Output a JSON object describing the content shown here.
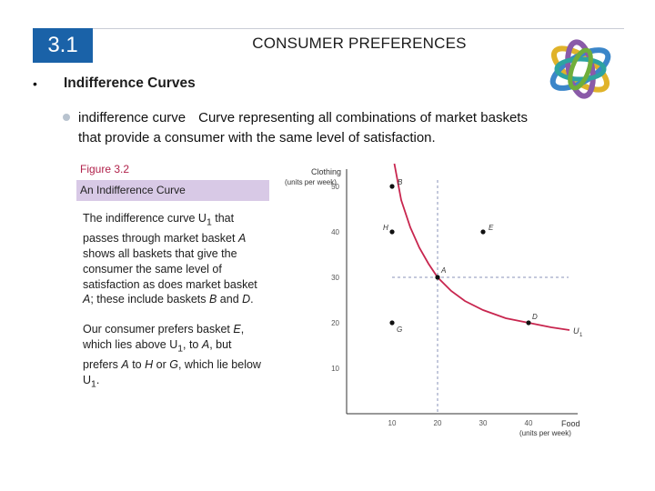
{
  "slide": {
    "number": "3.1",
    "title": "CONSUMER PREFERENCES",
    "bullet": "•",
    "heading": "Indifference Curves",
    "definition_term": "indifference curve",
    "definition_text": "Curve representing all combinations of market baskets that provide a consumer with the same level of satisfaction.",
    "logo_icon": "interlocking-rings-logo"
  },
  "figure": {
    "label": "Figure 3.2",
    "title": "An Indifference Curve",
    "caption_p1_a": "The indifference curve U",
    "caption_p1_sub": "1",
    "caption_p1_b": " that passes through market basket ",
    "caption_p1_c": "A",
    "caption_p1_d": " shows all baskets that give the consumer the same level of satisfaction as does market basket ",
    "caption_p1_e": "A",
    "caption_p1_f": "; these include baskets ",
    "caption_p1_g": "B",
    "caption_p1_h": " and ",
    "caption_p1_i": "D",
    "caption_p1_j": ".",
    "caption_p2_a": "Our consumer prefers basket ",
    "caption_p2_b": "E",
    "caption_p2_c": ", which lies above U",
    "caption_p2_sub1": "1",
    "caption_p2_d": ", to ",
    "caption_p2_e": "A",
    "caption_p2_f": ", but prefers ",
    "caption_p2_g": "A",
    "caption_p2_h": " to ",
    "caption_p2_i": "H",
    "caption_p2_j": " or ",
    "caption_p2_k": "G",
    "caption_p2_l": ", which lie below U",
    "caption_p2_sub2": "1",
    "caption_p2_m": "."
  },
  "chart_data": {
    "type": "scatter",
    "ylabel_line1": "Clothing",
    "ylabel_line2": "(units per week)",
    "xlabel_line1": "Food",
    "xlabel_line2": "(units per week)",
    "x_ticks": [
      10,
      20,
      30,
      40
    ],
    "y_ticks": [
      10,
      20,
      30,
      40,
      50
    ],
    "xlim": [
      0,
      50
    ],
    "ylim": [
      0,
      55
    ],
    "points": [
      {
        "label": "B",
        "x": 10,
        "y": 50
      },
      {
        "label": "H",
        "x": 10,
        "y": 40
      },
      {
        "label": "E",
        "x": 30,
        "y": 40
      },
      {
        "label": "A",
        "x": 20,
        "y": 30
      },
      {
        "label": "G",
        "x": 10,
        "y": 20
      },
      {
        "label": "D",
        "x": 40,
        "y": 20
      }
    ],
    "curve_label": "U",
    "curve_label_sub": "1",
    "curve": [
      [
        10.5,
        55
      ],
      [
        12,
        47
      ],
      [
        14,
        41
      ],
      [
        16,
        36.5
      ],
      [
        18,
        33
      ],
      [
        20,
        30
      ],
      [
        23,
        27
      ],
      [
        26,
        24.8
      ],
      [
        30,
        22.8
      ],
      [
        35,
        21
      ],
      [
        40,
        20
      ],
      [
        45,
        19
      ],
      [
        49,
        18.4
      ]
    ],
    "colors": {
      "curve": "#c8264f",
      "dashed": "#8a93b8",
      "axis": "#333333",
      "point": "#111111"
    }
  }
}
